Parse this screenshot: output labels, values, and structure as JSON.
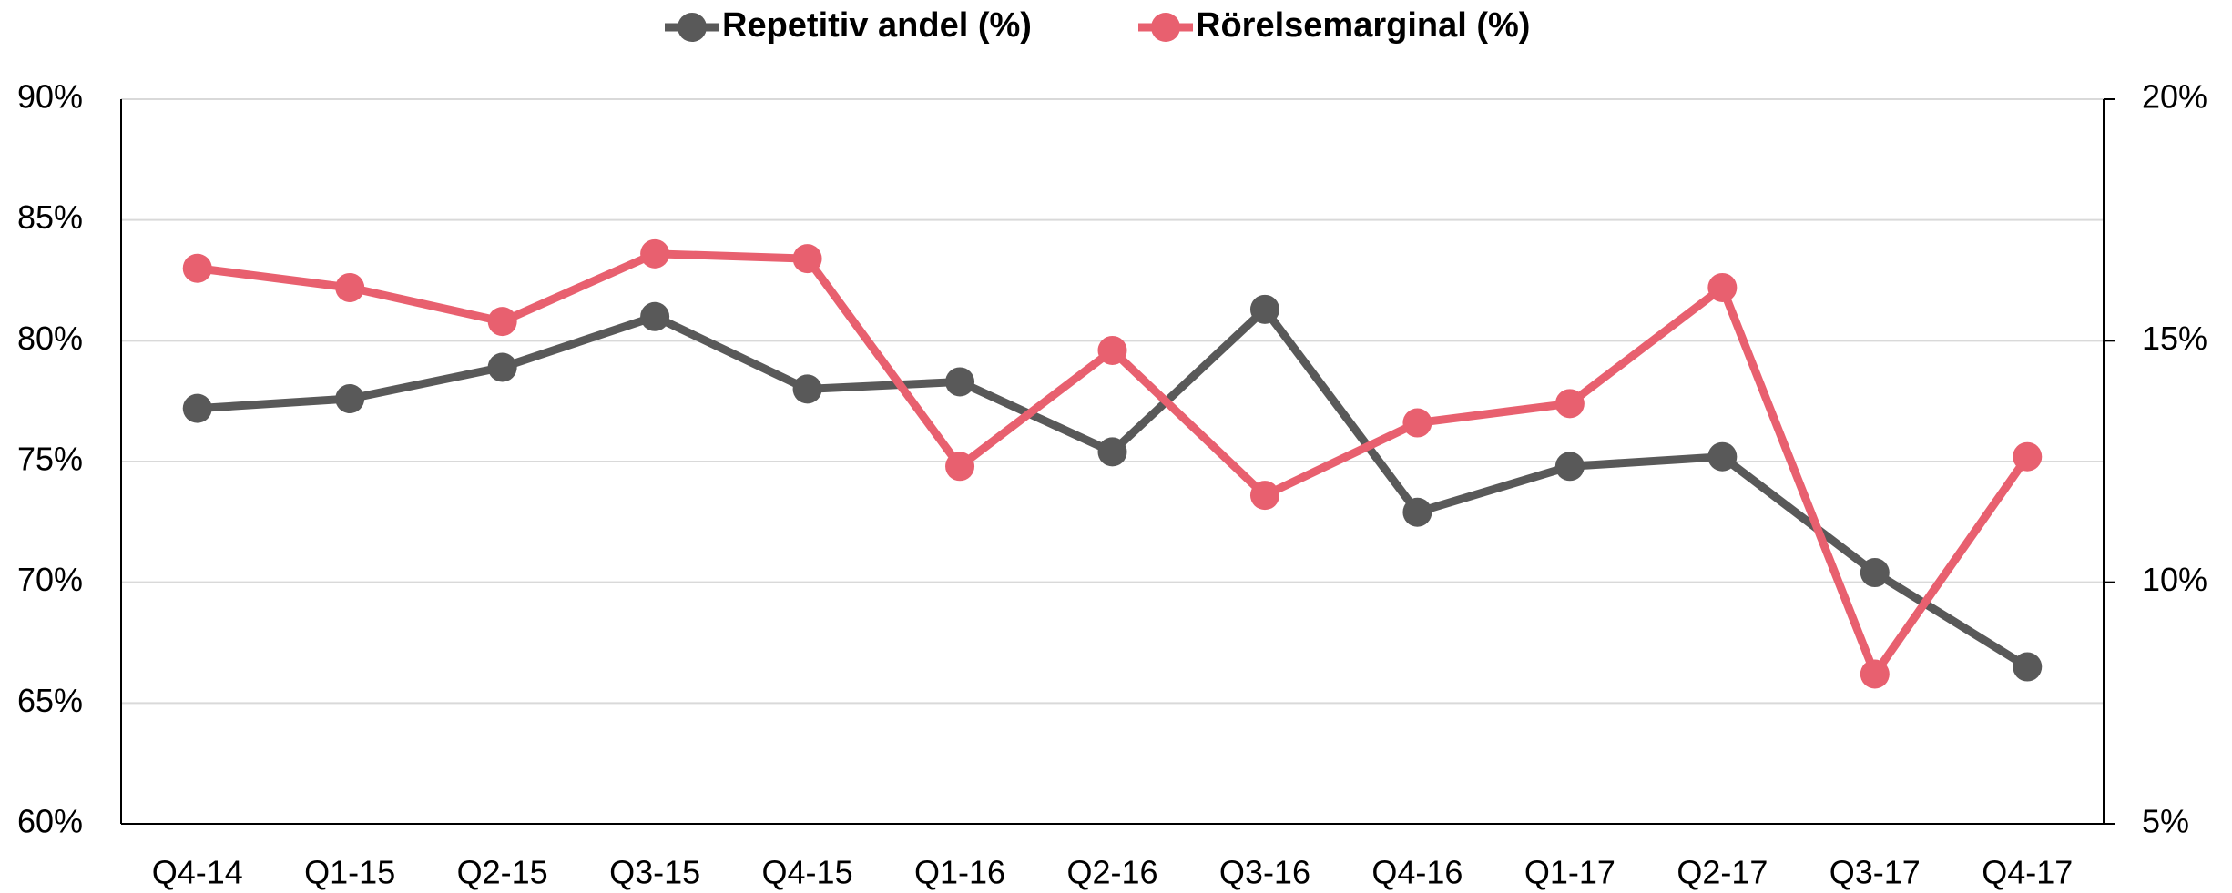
{
  "chart_data": {
    "type": "line",
    "categories": [
      "Q4-14",
      "Q1-15",
      "Q2-15",
      "Q3-15",
      "Q4-15",
      "Q1-16",
      "Q2-16",
      "Q3-16",
      "Q4-16",
      "Q1-17",
      "Q2-17",
      "Q3-17",
      "Q4-17"
    ],
    "series": [
      {
        "name": "Repetitiv andel (%)",
        "color": "#595959",
        "values": [
          77.2,
          77.6,
          78.9,
          81.0,
          78.0,
          78.3,
          75.4,
          81.3,
          72.9,
          74.8,
          75.2,
          70.4,
          66.5
        ]
      },
      {
        "name": "Rörelsemarginal (%)",
        "color": "#e8606f",
        "axis": "y2",
        "values": [
          16.5,
          16.1,
          15.4,
          16.8,
          16.7,
          12.4,
          14.8,
          11.8,
          13.3,
          13.7,
          16.1,
          8.1,
          12.6
        ]
      }
    ],
    "ylim": [
      60,
      90
    ],
    "yticks": [
      {
        "value": 60,
        "label": "60%"
      },
      {
        "value": 65,
        "label": "65%"
      },
      {
        "value": 70,
        "label": "70%"
      },
      {
        "value": 75,
        "label": "75%"
      },
      {
        "value": 80,
        "label": "80%"
      },
      {
        "value": 85,
        "label": "85%"
      },
      {
        "value": 90,
        "label": "90%"
      }
    ],
    "y2lim": [
      5,
      20
    ],
    "y2ticks": [
      {
        "value": 5,
        "label": "5%"
      },
      {
        "value": 10,
        "label": "10%"
      },
      {
        "value": 15,
        "label": "15%"
      },
      {
        "value": 20,
        "label": "20%"
      }
    ],
    "grid": true,
    "legend": "top"
  }
}
